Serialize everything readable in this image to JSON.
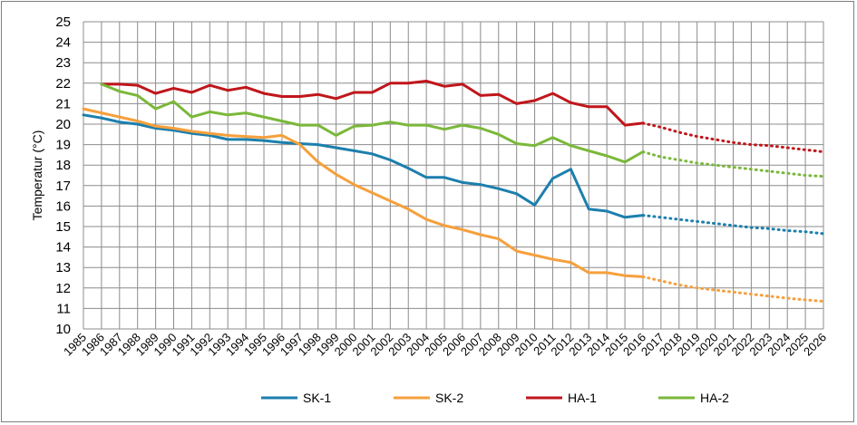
{
  "chart_data": {
    "type": "line",
    "title": "",
    "xlabel": "",
    "ylabel": "Temperatur (°C)",
    "ylim": [
      10,
      25
    ],
    "y_ticks": [
      10,
      11,
      12,
      13,
      14,
      15,
      16,
      17,
      18,
      19,
      20,
      21,
      22,
      23,
      24,
      25
    ],
    "grid": true,
    "legend_position": "bottom",
    "categories": [
      "1985",
      "1986",
      "1987",
      "1988",
      "1989",
      "1990",
      "1991",
      "1992",
      "1993",
      "1994",
      "1995",
      "1996",
      "1997",
      "1998",
      "1999",
      "2000",
      "2001",
      "2002",
      "2003",
      "2004",
      "2005",
      "2006",
      "2007",
      "2008",
      "2009",
      "2010",
      "2011",
      "2012",
      "2013",
      "2014",
      "2015",
      "2016",
      "2017",
      "2018",
      "2019",
      "2020",
      "2021",
      "2022",
      "2023",
      "2024",
      "2025",
      "2026"
    ],
    "observed_last_index": 31,
    "series": [
      {
        "name": "SK-1",
        "color": "#1c7fad",
        "values": [
          20.45,
          20.3,
          20.1,
          20.0,
          19.8,
          19.7,
          19.55,
          19.45,
          19.25,
          19.25,
          19.2,
          19.1,
          19.05,
          19.0,
          18.85,
          18.7,
          18.55,
          18.25,
          17.85,
          17.4,
          17.4,
          17.15,
          17.05,
          16.85,
          16.6,
          16.05,
          17.35,
          17.8,
          15.85,
          15.75,
          15.45,
          15.55,
          15.45,
          15.35,
          15.25,
          15.15,
          15.05,
          14.95,
          14.9,
          14.8,
          14.75,
          14.65
        ]
      },
      {
        "name": "SK-2",
        "color": "#f5a03c",
        "values": [
          20.75,
          20.55,
          20.35,
          20.15,
          19.9,
          19.8,
          19.65,
          19.55,
          19.45,
          19.4,
          19.35,
          19.45,
          19.0,
          18.15,
          17.55,
          17.05,
          16.65,
          16.25,
          15.85,
          15.35,
          15.05,
          14.85,
          14.6,
          14.4,
          13.8,
          13.6,
          13.4,
          13.25,
          12.75,
          12.75,
          12.6,
          12.55,
          12.35,
          12.15,
          12.0,
          11.9,
          11.8,
          11.7,
          11.6,
          11.5,
          11.42,
          11.35
        ]
      },
      {
        "name": "HA-1",
        "color": "#c0161b",
        "values": [
          null,
          21.95,
          21.95,
          21.9,
          21.5,
          21.75,
          21.55,
          21.9,
          21.65,
          21.8,
          21.5,
          21.35,
          21.35,
          21.45,
          21.25,
          21.55,
          21.55,
          22.0,
          22.0,
          22.1,
          21.85,
          21.95,
          21.4,
          21.45,
          21.0,
          21.15,
          21.5,
          21.05,
          20.85,
          20.85,
          19.95,
          20.05,
          19.85,
          19.6,
          19.4,
          19.25,
          19.1,
          19.0,
          18.95,
          18.85,
          18.75,
          18.65
        ]
      },
      {
        "name": "HA-2",
        "color": "#7ab83a",
        "values": [
          null,
          21.95,
          21.6,
          21.4,
          20.75,
          21.1,
          20.35,
          20.6,
          20.45,
          20.55,
          20.35,
          20.15,
          19.95,
          19.95,
          19.45,
          19.9,
          19.95,
          20.1,
          19.95,
          19.95,
          19.75,
          19.95,
          19.8,
          19.5,
          19.05,
          18.95,
          19.35,
          18.95,
          18.7,
          18.45,
          18.15,
          18.65,
          18.4,
          18.25,
          18.1,
          18.0,
          17.9,
          17.8,
          17.7,
          17.6,
          17.5,
          17.45
        ]
      }
    ]
  }
}
